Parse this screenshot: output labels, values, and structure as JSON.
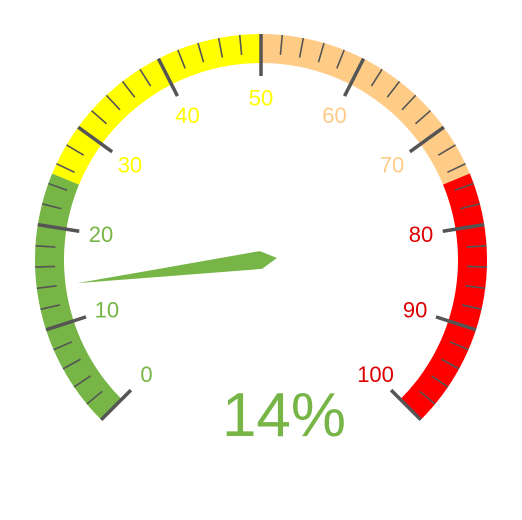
{
  "chart_data": {
    "type": "gauge",
    "value": 14,
    "value_text": "14%",
    "min": 0,
    "max": 100,
    "major_ticks": [
      0,
      10,
      20,
      30,
      40,
      50,
      60,
      70,
      80,
      90,
      100
    ],
    "tick_labels": [
      "0",
      "10",
      "20",
      "30",
      "40",
      "50",
      "60",
      "70",
      "80",
      "90",
      "100"
    ],
    "bands": [
      {
        "from": 0,
        "to": 25,
        "color": "#77b546"
      },
      {
        "from": 25,
        "to": 50,
        "color": "#ffff00"
      },
      {
        "from": 50,
        "to": 75,
        "color": "#ffcc88"
      },
      {
        "from": 75,
        "to": 100,
        "color": "#ff0000"
      }
    ],
    "label_colors": {
      "0": "#77b546",
      "10": "#77b546",
      "20": "#77b546",
      "30": "#ffff00",
      "40": "#ffff00",
      "50": "#ffff00",
      "60": "#ffcc88",
      "70": "#ffcc88",
      "80": "#dd0000",
      "90": "#dd0000",
      "100": "#dd0000"
    },
    "needle_color": "#77b546",
    "value_color": "#77b546",
    "tick_color": "#555555"
  }
}
